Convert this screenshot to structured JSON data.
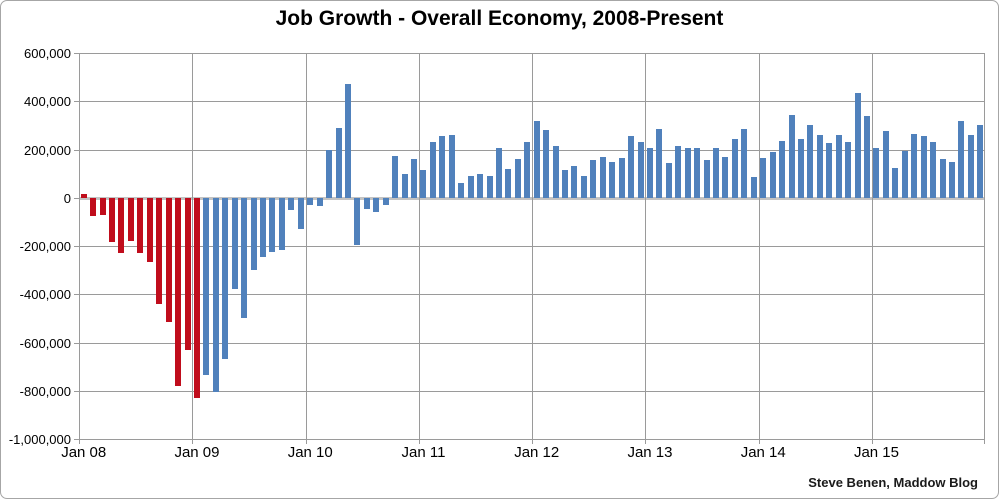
{
  "title": "Job Growth - Overall Economy, 2008-Present",
  "attribution": "Steve Benen, Maddow Blog",
  "colors": {
    "bar_negative_era": "#c00d1c",
    "bar_recovery_era": "#5081bc",
    "gridline": "#9a9a9a",
    "zero_line": "#c3c3c3",
    "text": "#000000",
    "frame_border": "#a6a6a6"
  },
  "chart_data": {
    "type": "bar",
    "title": "Job Growth - Overall Economy, 2008-Present",
    "xlabel": "",
    "ylabel": "",
    "ylim": [
      -1000000,
      600000
    ],
    "grid": true,
    "legend": "none",
    "y_tick_values": [
      600000,
      400000,
      200000,
      0,
      -200000,
      -400000,
      -600000,
      -800000,
      -1000000
    ],
    "y_tick_labels": [
      "600,000",
      "400,000",
      "200,000",
      "0",
      "-200,000",
      "-400,000",
      "-600,000",
      "-800,000",
      "-1,000,000"
    ],
    "x_tick_labels": [
      "Jan 08",
      "Jan 09",
      "Jan 10",
      "Jan 11",
      "Jan 12",
      "Jan 13",
      "Jan 14",
      "Jan 15"
    ],
    "red_bar_count": 13,
    "categories": [
      "Jan 08",
      "Feb 08",
      "Mar 08",
      "Apr 08",
      "May 08",
      "Jun 08",
      "Jul 08",
      "Aug 08",
      "Sep 08",
      "Oct 08",
      "Nov 08",
      "Dec 08",
      "Jan 09",
      "Feb 09",
      "Mar 09",
      "Apr 09",
      "May 09",
      "Jun 09",
      "Jul 09",
      "Aug 09",
      "Sep 09",
      "Oct 09",
      "Nov 09",
      "Dec 09",
      "Jan 10",
      "Feb 10",
      "Mar 10",
      "Apr 10",
      "May 10",
      "Jun 10",
      "Jul 10",
      "Aug 10",
      "Sep 10",
      "Oct 10",
      "Nov 10",
      "Dec 10",
      "Jan 11",
      "Feb 11",
      "Mar 11",
      "Apr 11",
      "May 11",
      "Jun 11",
      "Jul 11",
      "Aug 11",
      "Sep 11",
      "Oct 11",
      "Nov 11",
      "Dec 11",
      "Jan 12",
      "Feb 12",
      "Mar 12",
      "Apr 12",
      "May 12",
      "Jun 12",
      "Jul 12",
      "Aug 12",
      "Sep 12",
      "Oct 12",
      "Nov 12",
      "Dec 12",
      "Jan 13",
      "Feb 13",
      "Mar 13",
      "Apr 13",
      "May 13",
      "Jun 13",
      "Jul 13",
      "Aug 13",
      "Sep 13",
      "Oct 13",
      "Nov 13",
      "Dec 13",
      "Jan 14",
      "Feb 14",
      "Mar 14",
      "Apr 14",
      "May 14",
      "Jun 14",
      "Jul 14",
      "Aug 14",
      "Sep 14",
      "Oct 14",
      "Nov 14",
      "Dec 14",
      "Jan 15",
      "Feb 15",
      "Mar 15",
      "Apr 15",
      "May 15",
      "Jun 15",
      "Jul 15",
      "Aug 15",
      "Sep 15",
      "Oct 15",
      "Nov 15",
      "Dec 15"
    ],
    "values": [
      15000,
      -75000,
      -70000,
      -185000,
      -230000,
      -180000,
      -230000,
      -265000,
      -440000,
      -515000,
      -780000,
      -630000,
      -830000,
      -735000,
      -805000,
      -670000,
      -380000,
      -500000,
      -300000,
      -245000,
      -225000,
      -215000,
      -50000,
      -130000,
      -30000,
      -35000,
      200000,
      290000,
      470000,
      -195000,
      -45000,
      -60000,
      -30000,
      175000,
      100000,
      160000,
      115000,
      230000,
      255000,
      260000,
      60000,
      90000,
      100000,
      90000,
      205000,
      120000,
      160000,
      230000,
      320000,
      280000,
      215000,
      115000,
      130000,
      90000,
      155000,
      170000,
      150000,
      165000,
      255000,
      230000,
      205000,
      285000,
      145000,
      215000,
      205000,
      205000,
      155000,
      205000,
      170000,
      245000,
      285000,
      85000,
      165000,
      190000,
      235000,
      345000,
      245000,
      300000,
      260000,
      225000,
      260000,
      230000,
      435000,
      340000,
      205000,
      275000,
      125000,
      195000,
      265000,
      255000,
      230000,
      160000,
      150000,
      320000,
      260000,
      300000
    ]
  }
}
